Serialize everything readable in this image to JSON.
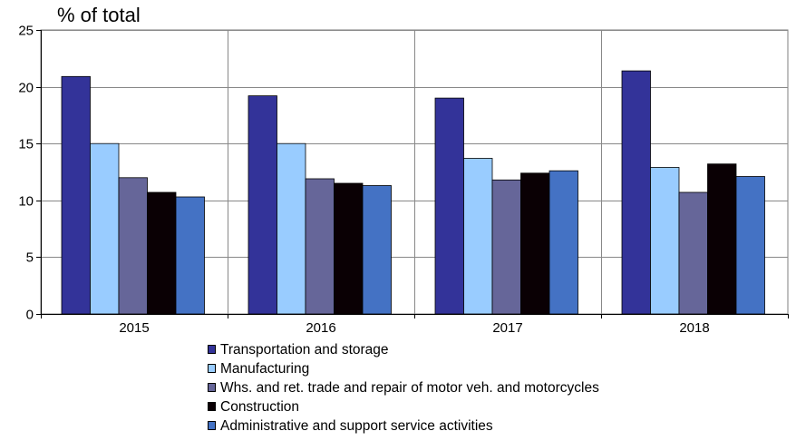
{
  "chart_data": {
    "type": "bar",
    "title": "% of total",
    "categories": [
      "2015",
      "2016",
      "2017",
      "2018"
    ],
    "ylim": [
      0,
      25
    ],
    "yticks": [
      0,
      5,
      10,
      15,
      20,
      25
    ],
    "grid": true,
    "legend_position": "bottom",
    "series": [
      {
        "name": "Transportation and storage",
        "color": "#333399",
        "values": [
          20.9,
          19.2,
          19.0,
          21.4
        ]
      },
      {
        "name": "Manufacturing",
        "color": "#99CCFF",
        "values": [
          15.0,
          15.0,
          13.7,
          12.9
        ]
      },
      {
        "name": "Whs. and ret. trade and repair of motor veh. and motorcycles",
        "color": "#666699",
        "values": [
          12.0,
          11.9,
          11.8,
          10.7
        ]
      },
      {
        "name": "Construction",
        "color": "#0A0004",
        "values": [
          10.7,
          11.5,
          12.4,
          13.2
        ]
      },
      {
        "name": "Administrative and support service activities",
        "color": "#4472C4",
        "values": [
          10.3,
          11.3,
          12.6,
          12.1
        ]
      }
    ]
  }
}
